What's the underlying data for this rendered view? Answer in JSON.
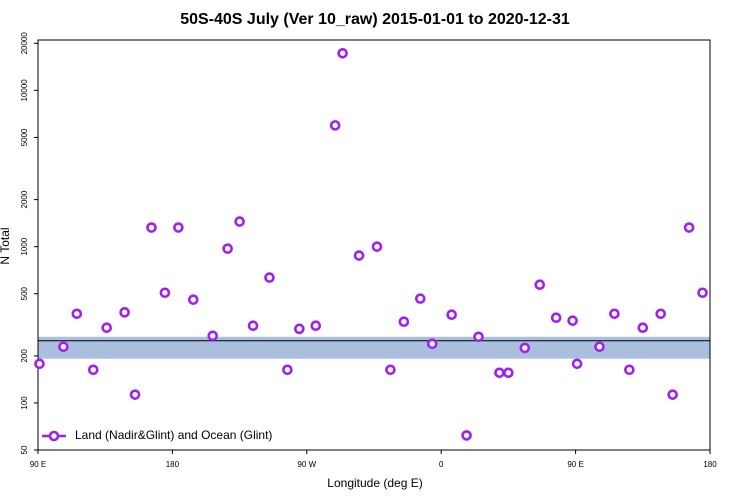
{
  "chart_data": {
    "type": "scatter",
    "title": "50S-40S July (Ver 10_raw)   2015-01-01 to 2020-12-31",
    "x_label": "Longitude (deg E)",
    "y_label": "N Total",
    "log_y": true,
    "xlim": [
      90,
      540
    ],
    "xticks": [
      {
        "value": 90,
        "label": "90 E"
      },
      {
        "value": 180,
        "label": "180"
      },
      {
        "value": 270,
        "label": "90 W"
      },
      {
        "value": 360,
        "label": "0"
      },
      {
        "value": 450,
        "label": "90 E"
      },
      {
        "value": 540,
        "label": "180"
      }
    ],
    "ylim": [
      50,
      21000
    ],
    "yticks": [
      50,
      100,
      200,
      500,
      1000,
      2000,
      5000,
      10000,
      20000
    ],
    "legend": "bottom-left",
    "band": [
      192,
      265
    ],
    "band_color": "#a9bfdd",
    "ref_line": 250,
    "series": [
      {
        "name": "Land (Nadir&Glint) and Ocean (Glint)",
        "color": "#a020f0",
        "x": [
          91,
          107,
          116,
          127,
          136,
          148,
          155,
          166,
          175,
          184,
          194,
          207,
          217,
          225,
          234,
          245,
          257,
          265,
          276,
          289,
          294,
          305,
          317,
          326,
          335,
          346,
          354,
          367,
          377,
          385,
          399,
          405,
          416,
          426,
          437,
          448,
          451,
          466,
          476,
          486,
          495,
          507,
          515,
          526,
          535
        ],
        "values": [
          178,
          229,
          372,
          163,
          303,
          380,
          113,
          1325,
          507,
          1325,
          458,
          269,
          971,
          1448,
          312,
          634,
          163,
          298,
          312,
          5970,
          17270,
          877,
          1000,
          163,
          331,
          465,
          239,
          367,
          62,
          265,
          156,
          156,
          225,
          571,
          351,
          336,
          178,
          229,
          372,
          163,
          303,
          372,
          113,
          1325,
          507
        ]
      }
    ]
  }
}
